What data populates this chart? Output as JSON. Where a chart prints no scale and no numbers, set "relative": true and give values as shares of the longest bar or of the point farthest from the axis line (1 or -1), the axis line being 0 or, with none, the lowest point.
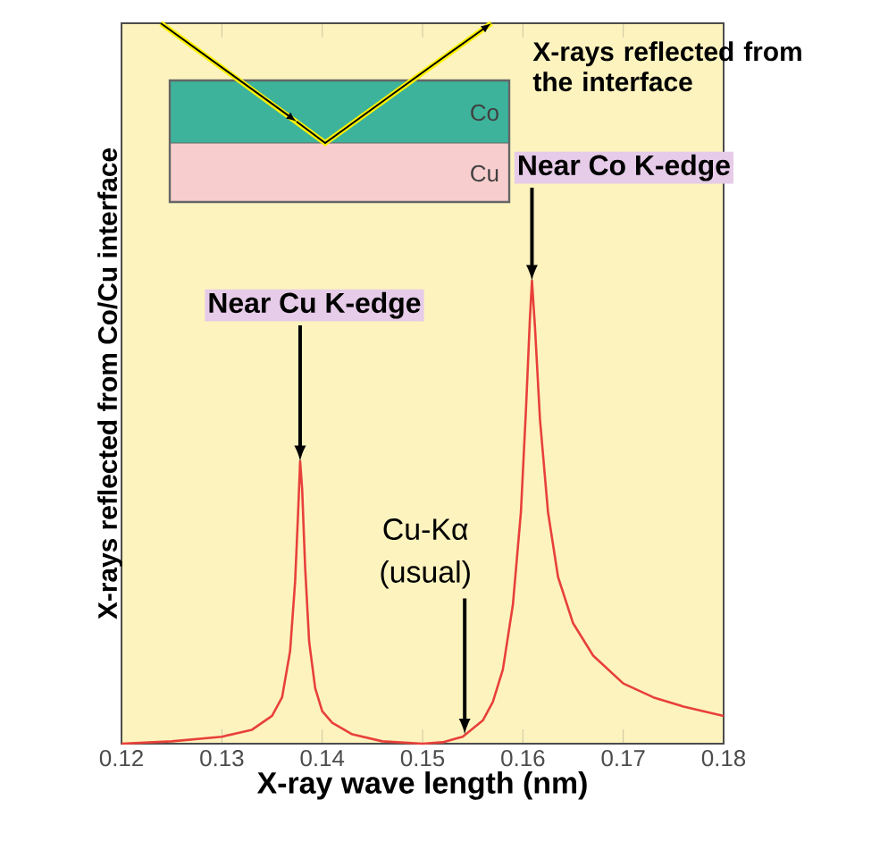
{
  "chart_data": {
    "type": "line",
    "xlabel": "X-ray wave length (nm)",
    "ylabel": "X-rays reflected from Co/Cu interface",
    "relative": true,
    "color": "#e8403a",
    "xlim": [
      0.12,
      0.18
    ],
    "xticks": [
      0.12,
      0.13,
      0.14,
      0.15,
      0.16,
      0.17,
      0.18
    ],
    "x": [
      0.12,
      0.125,
      0.13,
      0.133,
      0.135,
      0.136,
      0.1368,
      0.1373,
      0.1376,
      0.1378,
      0.138,
      0.1383,
      0.1387,
      0.1393,
      0.14,
      0.141,
      0.143,
      0.146,
      0.15,
      0.152,
      0.154,
      0.156,
      0.157,
      0.158,
      0.159,
      0.1598,
      0.1603,
      0.1607,
      0.1609,
      0.1612,
      0.1617,
      0.1625,
      0.1635,
      0.165,
      0.167,
      0.17,
      0.173,
      0.176,
      0.18
    ],
    "values": [
      0.0,
      0.005,
      0.015,
      0.03,
      0.06,
      0.1,
      0.2,
      0.35,
      0.5,
      0.61,
      0.55,
      0.38,
      0.22,
      0.12,
      0.07,
      0.045,
      0.02,
      0.005,
      0.0,
      0.003,
      0.015,
      0.05,
      0.09,
      0.16,
      0.3,
      0.5,
      0.72,
      0.92,
      1.0,
      0.9,
      0.7,
      0.5,
      0.36,
      0.26,
      0.19,
      0.13,
      0.1,
      0.08,
      0.06
    ],
    "annotations": [
      "X-rays reflected from the interface",
      {
        "text": "Near Co K-edge",
        "x": 0.1609,
        "y": 1
      },
      {
        "text": "Near Cu K-edge",
        "x": 0.1378,
        "y": 0.61
      },
      {
        "text": "Cu-Kα (usual)",
        "x": 0.1542,
        "y": 0.02
      },
      "Co",
      "Cu"
    ]
  }
}
